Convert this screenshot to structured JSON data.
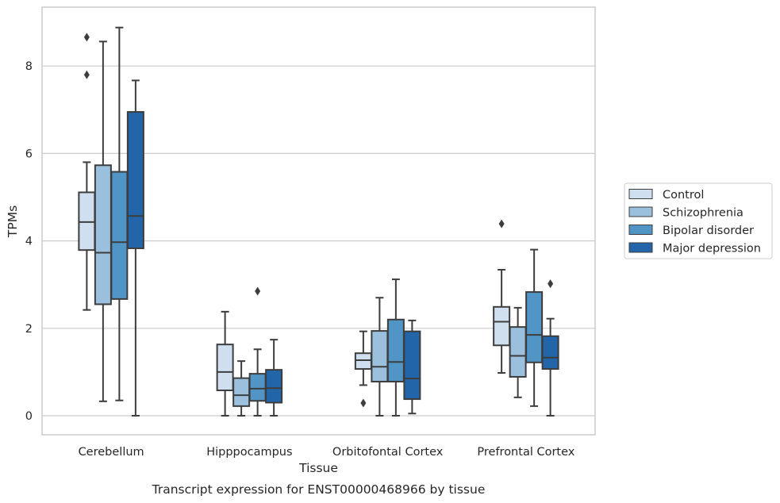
{
  "chart_data": {
    "type": "box",
    "caption": "Transcript expression for ENST00000468966 by tissue",
    "xlabel": "Tissue",
    "ylabel": "TPMs",
    "ylim": [
      -0.43,
      9.4
    ],
    "yticks": [
      0,
      2,
      4,
      6,
      8
    ],
    "grid": "horizontal",
    "legend_position": "right",
    "categories": [
      "Cerebellum",
      "Hipppocampus",
      "Orbitofontal Cortex",
      "Prefrontal Cortex"
    ],
    "series": [
      {
        "name": "Control",
        "color": "#d0dfef",
        "boxes": [
          {
            "whislo": 2.42,
            "q1": 3.79,
            "med": 4.43,
            "q3": 5.11,
            "whishi": 5.8,
            "fliers": [
              7.8,
              8.66
            ]
          },
          {
            "whislo": 0.0,
            "q1": 0.58,
            "med": 1.0,
            "q3": 1.63,
            "whishi": 2.38,
            "fliers": []
          },
          {
            "whislo": 0.7,
            "q1": 1.07,
            "med": 1.27,
            "q3": 1.43,
            "whishi": 1.93,
            "fliers": [
              0.29
            ]
          },
          {
            "whislo": 0.98,
            "q1": 1.61,
            "med": 2.15,
            "q3": 2.49,
            "whishi": 3.34,
            "fliers": [
              4.39
            ]
          }
        ]
      },
      {
        "name": "Schizophrenia",
        "color": "#9ac0de",
        "boxes": [
          {
            "whislo": 0.33,
            "q1": 2.55,
            "med": 3.73,
            "q3": 5.73,
            "whishi": 8.56,
            "fliers": []
          },
          {
            "whislo": 0.0,
            "q1": 0.22,
            "med": 0.47,
            "q3": 0.86,
            "whishi": 1.25,
            "fliers": []
          },
          {
            "whislo": 0.0,
            "q1": 0.78,
            "med": 1.12,
            "q3": 1.94,
            "whishi": 2.7,
            "fliers": []
          },
          {
            "whislo": 0.42,
            "q1": 0.89,
            "med": 1.37,
            "q3": 2.03,
            "whishi": 2.47,
            "fliers": []
          }
        ]
      },
      {
        "name": "Bipolar disorder",
        "color": "#5195c6",
        "boxes": [
          {
            "whislo": 0.35,
            "q1": 2.67,
            "med": 3.97,
            "q3": 5.58,
            "whishi": 8.88,
            "fliers": []
          },
          {
            "whislo": 0.0,
            "q1": 0.34,
            "med": 0.62,
            "q3": 0.96,
            "whishi": 1.52,
            "fliers": [
              2.85
            ]
          },
          {
            "whislo": 0.0,
            "q1": 0.78,
            "med": 1.23,
            "q3": 2.2,
            "whishi": 3.12,
            "fliers": []
          },
          {
            "whislo": 0.22,
            "q1": 1.22,
            "med": 1.85,
            "q3": 2.83,
            "whishi": 3.8,
            "fliers": []
          }
        ]
      },
      {
        "name": "Major depression",
        "color": "#2265a9",
        "boxes": [
          {
            "whislo": 0.0,
            "q1": 3.83,
            "med": 4.57,
            "q3": 6.95,
            "whishi": 7.67,
            "fliers": []
          },
          {
            "whislo": 0.0,
            "q1": 0.3,
            "med": 0.63,
            "q3": 1.05,
            "whishi": 1.74,
            "fliers": []
          },
          {
            "whislo": 0.05,
            "q1": 0.38,
            "med": 0.85,
            "q3": 1.93,
            "whishi": 2.18,
            "fliers": []
          },
          {
            "whislo": 0.0,
            "q1": 1.07,
            "med": 1.33,
            "q3": 1.82,
            "whishi": 2.22,
            "fliers": [
              3.02
            ]
          }
        ]
      }
    ]
  }
}
